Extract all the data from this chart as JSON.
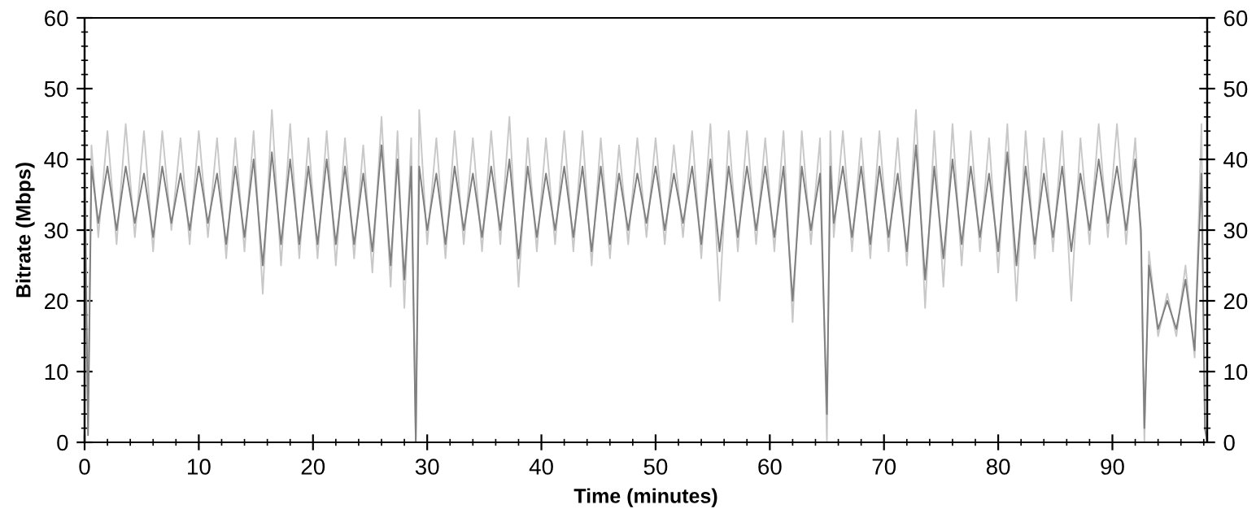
{
  "chart_data": {
    "type": "line",
    "xlabel": "Time (minutes)",
    "ylabel": "Bitrate (Mbps)",
    "x": [
      0,
      0.3,
      0.6,
      1.2,
      2,
      2.8,
      3.6,
      4.4,
      5.2,
      6,
      6.8,
      7.6,
      8.4,
      9.2,
      10,
      10.8,
      11.6,
      12.4,
      13.2,
      14,
      14.8,
      15.6,
      16.4,
      17.2,
      18,
      18.8,
      19.6,
      20.4,
      21.2,
      22,
      22.8,
      23.6,
      24.4,
      25.2,
      26,
      26.8,
      27.4,
      28,
      28.6,
      29.0,
      29.3,
      30,
      30.8,
      31.6,
      32.4,
      33.2,
      34,
      34.8,
      35.6,
      36.4,
      37.2,
      38,
      38.8,
      39.6,
      40.4,
      41.2,
      42,
      42.8,
      43.6,
      44.4,
      45.2,
      46,
      46.8,
      47.6,
      48.4,
      49.2,
      50,
      50.8,
      51.6,
      52.4,
      53.2,
      54,
      54.8,
      55.6,
      56.4,
      57.2,
      58,
      58.8,
      59.6,
      60.4,
      61.2,
      62,
      62.8,
      63.6,
      64.4,
      65.0,
      65.3,
      65.6,
      66.4,
      67.2,
      68,
      68.8,
      69.6,
      70.4,
      71.2,
      72,
      72.8,
      73.6,
      74.4,
      75.2,
      76,
      76.8,
      77.6,
      78.4,
      79.2,
      80,
      80.8,
      81.6,
      82.4,
      83.2,
      84,
      84.8,
      85.6,
      86.4,
      87.2,
      88,
      88.8,
      89.6,
      90.4,
      91.2,
      92,
      92.5,
      92.8,
      93.2,
      94,
      94.8,
      95.6,
      96.4,
      97.2,
      97.8,
      98.1,
      98.3
    ],
    "series": [
      {
        "color": "#c8c8c8",
        "values": [
          44,
          2,
          42,
          29,
          44,
          28,
          45,
          29,
          44,
          27,
          44,
          30,
          43,
          28,
          44,
          29,
          43,
          26,
          43,
          27,
          44,
          21,
          47,
          25,
          45,
          26,
          43,
          26,
          44,
          25,
          43,
          26,
          42,
          24,
          46,
          22,
          44,
          19,
          43,
          0,
          47,
          28,
          43,
          26,
          44,
          28,
          43,
          27,
          44,
          28,
          46,
          22,
          43,
          27,
          43,
          28,
          44,
          27,
          44,
          25,
          43,
          26,
          42,
          28,
          43,
          29,
          43,
          28,
          42,
          29,
          44,
          26,
          45,
          20,
          44,
          27,
          44,
          28,
          43,
          27,
          44,
          17,
          44,
          28,
          43,
          0,
          44,
          29,
          44,
          27,
          43,
          26,
          44,
          27,
          43,
          25,
          47,
          19,
          44,
          22,
          45,
          25,
          44,
          27,
          43,
          24,
          45,
          20,
          44,
          26,
          43,
          27,
          44,
          20,
          43,
          28,
          45,
          29,
          45,
          28,
          43,
          28,
          0,
          27,
          15,
          21,
          15,
          25,
          12,
          45,
          2,
          0
        ]
      },
      {
        "color": "#7f7f7f",
        "values": [
          38,
          1,
          39,
          31,
          39,
          30,
          39,
          31,
          38,
          29,
          39,
          31,
          38,
          30,
          39,
          31,
          38,
          28,
          39,
          29,
          40,
          25,
          41,
          28,
          40,
          28,
          39,
          28,
          40,
          28,
          39,
          28,
          38,
          27,
          42,
          25,
          40,
          23,
          39,
          0,
          39,
          30,
          38,
          28,
          39,
          30,
          38,
          29,
          39,
          30,
          40,
          26,
          39,
          29,
          38,
          30,
          39,
          29,
          39,
          27,
          39,
          28,
          38,
          30,
          38,
          31,
          39,
          30,
          38,
          31,
          39,
          28,
          40,
          27,
          39,
          29,
          39,
          30,
          39,
          29,
          39,
          20,
          39,
          30,
          38,
          4,
          39,
          31,
          39,
          29,
          39,
          28,
          39,
          29,
          38,
          27,
          42,
          23,
          39,
          26,
          40,
          28,
          39,
          29,
          38,
          27,
          41,
          25,
          39,
          28,
          38,
          29,
          39,
          27,
          38,
          30,
          40,
          31,
          39,
          30,
          40,
          30,
          2,
          25,
          16,
          20,
          16,
          23,
          13,
          38,
          2,
          0
        ]
      }
    ],
    "xlim": [
      0,
      98.3
    ],
    "xticks": [
      0,
      10,
      20,
      30,
      40,
      50,
      60,
      70,
      80,
      90
    ],
    "ylim": [
      0,
      60
    ],
    "yticks": [
      0,
      10,
      20,
      30,
      40,
      50,
      60
    ],
    "y2lim": [
      0,
      60
    ],
    "y2ticks": [
      0,
      10,
      20,
      30,
      40,
      50,
      60
    ],
    "grid": false,
    "legend": false,
    "marker": "none",
    "line_style": "solid"
  }
}
